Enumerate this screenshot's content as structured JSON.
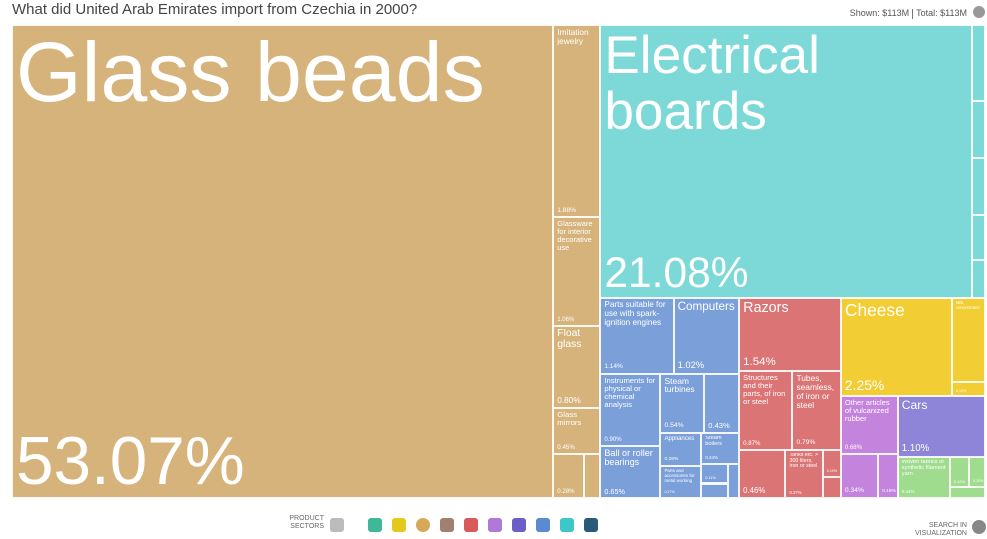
{
  "chart_data": {
    "type": "treemap",
    "title": "What did United Arab Emirates import from Czechia in 2000?",
    "shown": "Shown: $113M",
    "total": "Total: $113M",
    "footer_sectors": "PRODUCT SECTORS",
    "footer_search": "SEARCH IN VISUALIZATION",
    "groups": [
      {
        "color": "#d6b37a",
        "names": [
          "Glass beads",
          "Imitation jewelry",
          "Glassware for interior decorative use",
          "Float glass",
          "Glass mirrors",
          null,
          null
        ],
        "values": [
          53.07,
          1.88,
          1.06,
          0.8,
          0.45,
          0.28,
          0.15
        ],
        "value_labels": [
          "53.07%",
          "1.88%",
          "1.06%",
          "0.80%",
          "0.45%",
          "0.28%",
          null
        ]
      },
      {
        "color": "#7dd8d8",
        "names": [
          "Electrical boards",
          null,
          null,
          null,
          null,
          null
        ],
        "values": [
          21.08,
          0.2,
          0.15,
          0.15,
          0.12,
          0.1
        ],
        "value_labels": [
          "21.08%",
          "0.20%",
          "0.15%",
          "0.15%",
          "0.12%",
          "0.10%"
        ]
      },
      {
        "color": "#7b9fd9",
        "names": [
          "Parts suitable for use with spark-ignition engines",
          "Computers",
          "Instruments for physical or chemical analysis",
          "Ball or roller bearings",
          "Steam turbines",
          "Self-propelled",
          "Appliances",
          "Parts and accessories for metal working",
          "Steam boilers",
          null,
          null,
          null
        ],
        "values": [
          1.14,
          1.02,
          0.9,
          0.65,
          0.54,
          0.43,
          0.28,
          0.27,
          0.24,
          0.11,
          0.08,
          0.08
        ],
        "value_labels": [
          "1.14%",
          "1.02%",
          "0.90%",
          "0.65%",
          "0.54%",
          "0.43%",
          "0.28%",
          "0.27%",
          "0.24%",
          "0.11%",
          "0.08%",
          null
        ]
      },
      {
        "color": "#db7474",
        "names": [
          "Razors",
          "Structures and their parts, of iron or steel",
          "Tubes, seamless, of iron or steel",
          null,
          "Tanks etc. > 300 liters, iron or steel",
          null,
          null
        ],
        "values": [
          1.54,
          0.87,
          0.79,
          0.46,
          0.37,
          0.1,
          0.08
        ],
        "value_labels": [
          "1.54%",
          "0.87%",
          "0.79%",
          "0.46%",
          "0.37%",
          "0.10%",
          "0.08%"
        ]
      },
      {
        "color": "#f2cd33",
        "names": [
          "Cheese",
          "Milk, concentrated",
          null
        ],
        "values": [
          2.25,
          0.57,
          0.1
        ],
        "value_labels": [
          "2.25%",
          "0.57%",
          "0.10%"
        ]
      },
      {
        "color": "#c483dc",
        "names": [
          "Other articles of vulcanized rubber",
          null,
          null
        ],
        "values": [
          0.68,
          0.34,
          0.18
        ],
        "value_labels": [
          "0.68%",
          "0.34%",
          "0.18%"
        ]
      },
      {
        "color": "#8e84d8",
        "names": [
          "Cars"
        ],
        "values": [
          1.1
        ],
        "value_labels": [
          "1.10%"
        ]
      },
      {
        "color": "#9fdc8e",
        "names": [
          "Woven fabrics of synthetic filament yarn",
          null,
          null,
          null
        ],
        "values": [
          0.44,
          0.12,
          0.1,
          0.08
        ],
        "value_labels": [
          "0.44%",
          "0.12%",
          "0.10%",
          "0.08%"
        ]
      }
    ]
  }
}
